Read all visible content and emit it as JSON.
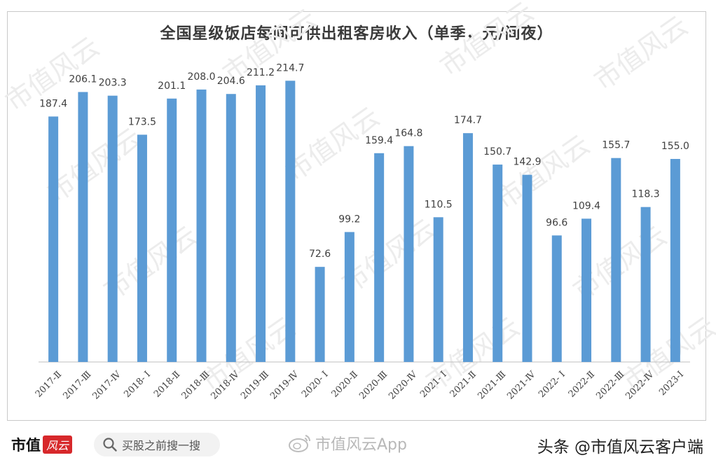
{
  "chart_data": {
    "type": "bar",
    "title": "全国星级饭店每间可供出租客房收入（单季，元/间夜）",
    "categories": [
      "2017-Ⅱ",
      "2017-Ⅲ",
      "2017-Ⅳ",
      "2018- Ⅰ",
      "2018-Ⅱ",
      "2018-Ⅲ",
      "2018-Ⅳ",
      "2019-Ⅲ",
      "2019-Ⅳ",
      "2020- Ⅰ",
      "2020-Ⅱ",
      "2020-Ⅲ",
      "2020-Ⅳ",
      "2021- Ⅰ",
      "2021-Ⅱ",
      "2021-Ⅲ",
      "2021-Ⅳ",
      "2022- Ⅰ",
      "2022-Ⅱ",
      "2022-Ⅲ",
      "2022-Ⅳ",
      "2023-Ⅰ"
    ],
    "values": [
      187.4,
      206.1,
      203.3,
      173.5,
      201.1,
      208.0,
      204.6,
      211.2,
      214.7,
      72.6,
      99.2,
      159.4,
      164.8,
      110.5,
      174.7,
      150.7,
      142.9,
      96.6,
      109.4,
      155.7,
      118.3,
      155.0
    ],
    "value_labels": [
      "187.4",
      "206.1",
      "203.3",
      "173.5",
      "201.1",
      "208.0",
      "204.6",
      "211.2",
      "214.7",
      "72.6",
      "99.2",
      "159.4",
      "164.8",
      "110.5",
      "174.7",
      "150.7",
      "142.9",
      "96.6",
      "109.4",
      "155.7",
      "118.3",
      "155.0"
    ],
    "ylim": [
      0,
      240
    ],
    "grid": false,
    "legend": "none",
    "bar_color": "#5b9bd5"
  },
  "watermark": {
    "text": "市值风云"
  },
  "footer": {
    "logo_text": "市值",
    "logo_badge": "风云",
    "search_placeholder": "买股之前搜一搜",
    "weibo_text": "市值风云App",
    "toutiao_text": "头条 @市值风云客户端"
  },
  "colors": {
    "bar": "#5b9bd5",
    "brand_red": "#d7282b",
    "axis": "#bfbfbf",
    "label": "#404040"
  }
}
